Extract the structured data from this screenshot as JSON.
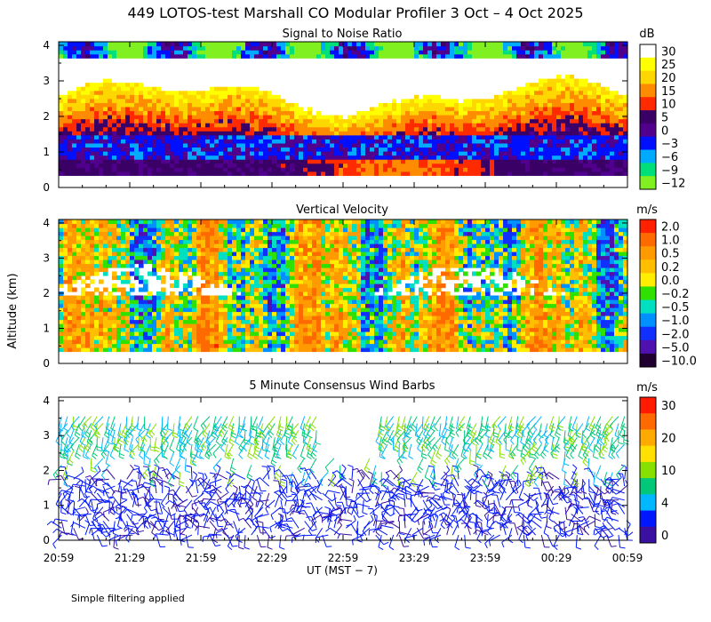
{
  "title": "449 LOTOS-test Marshall CO Modular Profiler  3 Oct –  4 Oct 2025",
  "y_axis_label": "Altitude (km)",
  "x_axis_label": "UT  (MST − 7)",
  "footnote": "Simple filtering applied",
  "chart_data": [
    {
      "type": "heatmap",
      "title": "Signal to Noise Ratio",
      "x": [
        "20:59",
        "21:29",
        "21:59",
        "22:29",
        "22:59",
        "23:29",
        "23:59",
        "00:29",
        "00:59"
      ],
      "y_ticks": [
        0,
        1,
        2,
        3,
        4
      ],
      "ylim": [
        0,
        4.1
      ],
      "colorbar": {
        "unit": "dB",
        "labels": [
          "30",
          "25",
          "20",
          "15",
          "10",
          "5",
          "0",
          "−3",
          "−6",
          "−9",
          "−12"
        ],
        "colors": [
          "#ffffff",
          "#ffff00",
          "#ffd700",
          "#ff8c00",
          "#ff2a00",
          "#3a0066",
          "#50008c",
          "#0010ff",
          "#00aaff",
          "#00e07a",
          "#80f020"
        ]
      }
    },
    {
      "type": "heatmap",
      "title": "Vertical Velocity",
      "x": [
        "20:59",
        "21:29",
        "21:59",
        "22:29",
        "22:59",
        "23:29",
        "23:59",
        "00:29",
        "00:59"
      ],
      "y_ticks": [
        0,
        1,
        2,
        3,
        4
      ],
      "ylim": [
        0,
        4.1
      ],
      "colorbar": {
        "unit": "m/s",
        "labels": [
          "2.0",
          "1.0",
          "0.5",
          "0.2",
          "0.0",
          "−0.2",
          "−0.5",
          "−1.0",
          "−2.0",
          "−5.0",
          "−10.0"
        ],
        "colors": [
          "#ff2000",
          "#ff6a00",
          "#ff9a00",
          "#ffbe00",
          "#ffee00",
          "#30e000",
          "#00e0c0",
          "#0090ff",
          "#1030ff",
          "#5010b0",
          "#200030"
        ]
      }
    },
    {
      "type": "scatter",
      "title": "5 Minute Consensus Wind Barbs",
      "x": [
        "20:59",
        "21:29",
        "21:59",
        "22:29",
        "22:59",
        "23:29",
        "23:59",
        "00:29",
        "00:59"
      ],
      "y_ticks": [
        0,
        1,
        2,
        3,
        4
      ],
      "ylim": [
        0,
        4.1
      ],
      "colorbar": {
        "unit": "m/s",
        "labels": [
          "30",
          "20",
          "10",
          "4",
          "0"
        ],
        "colors": [
          "#ff1a00",
          "#ff6a00",
          "#ffaa00",
          "#ffe000",
          "#88e000",
          "#00c878",
          "#00b8ff",
          "#0018ff",
          "#3a10a0"
        ]
      }
    }
  ]
}
